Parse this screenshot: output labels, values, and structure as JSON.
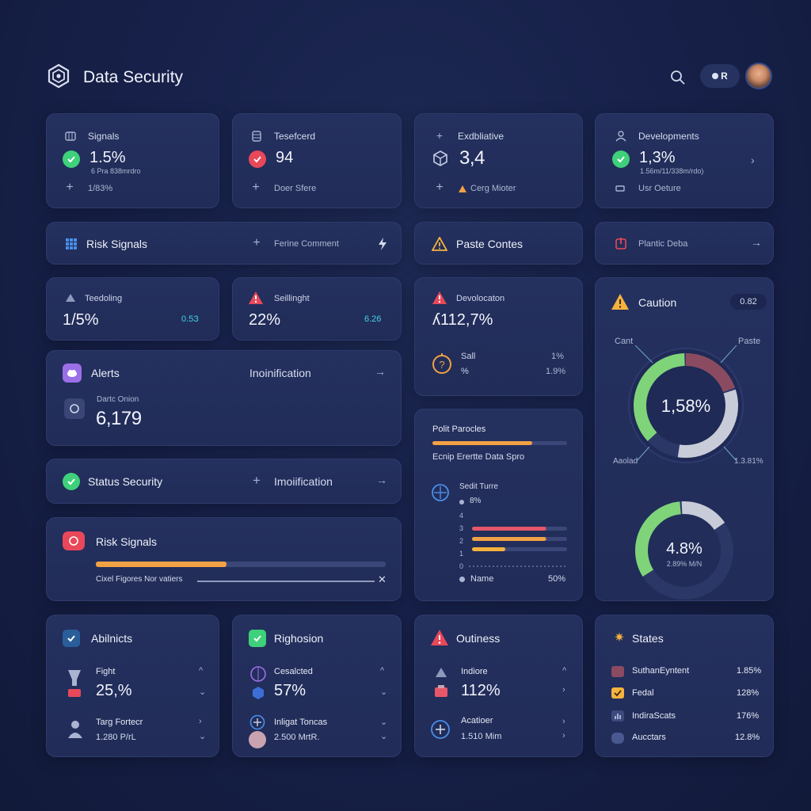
{
  "app": {
    "title": "Data Security"
  },
  "header": {
    "toggle_label": "R"
  },
  "colors": {
    "green": "#3ed07a",
    "red": "#e8485a",
    "orange": "#f2a145",
    "amber": "#f5b23d",
    "blue": "#4a8fe8",
    "purple": "#9b6fe8"
  },
  "top_cards": [
    {
      "title": "Signals",
      "value": "1.5%",
      "sub": "6 Pra 838mrdro",
      "foot": "1/83%"
    },
    {
      "title": "Tesefcerd",
      "value": "94",
      "foot": "Doer Sfere"
    },
    {
      "title": "Exdbliative",
      "value": "3,4",
      "foot": "Cerg Mioter"
    },
    {
      "title": "Developments",
      "value": "1,3%",
      "sub": "1.56m/11/338m/rdo)",
      "foot": "Usr Oeture"
    }
  ],
  "risk_bar": {
    "title": "Risk Signals",
    "action": "Ferine Comment"
  },
  "paste_card": {
    "title": "Paste Contes"
  },
  "plantic_card": {
    "title": "Plantic Deba"
  },
  "metric_cards": [
    {
      "title": "Teedoling",
      "value": "1/5%",
      "delta": "0.5З"
    },
    {
      "title": "Seillinght",
      "value": "22%",
      "delta": "6.26"
    }
  ],
  "devolocation": {
    "title": "Devolocaton",
    "value": "ʎ112,7%",
    "row_label_1": "Sall",
    "row_label_2": "%",
    "row_value_1": "1%",
    "row_value_2": "1.9%"
  },
  "caution": {
    "title": "Caution",
    "badge": "0.82",
    "donut1_label": "1,58%",
    "donut1_tl": "Cant",
    "donut1_tr": "Paste",
    "donut1_bl": "Aaolad",
    "donut1_br": "1.3.81%",
    "donut1_segments": [
      {
        "name": "Cant",
        "value": 0.37,
        "color": "#7fd47a"
      },
      {
        "name": "Paste",
        "value": 0.2,
        "color": "#8a4b61"
      },
      {
        "name": "Aaolad",
        "value": 0.33,
        "color": "#c8ccd8"
      }
    ],
    "donut2_label": "4.8%",
    "donut2_sub": "2.89% M/N",
    "donut2_segments": [
      {
        "value": 0.33,
        "color": "#7fd47a"
      },
      {
        "value": 0.17,
        "color": "#c8ccd8"
      }
    ]
  },
  "alerts": {
    "title": "Alerts",
    "mid": "Inoinification",
    "sub": "Dartc Onion",
    "value": "6,179"
  },
  "status": {
    "title": "Status Security",
    "mid": "Imoiification"
  },
  "risk_signals": {
    "title": "Risk Signals",
    "caption": "Cixel Figores Nor vatiers",
    "progress": 0.45
  },
  "polit": {
    "title": "Polit Parocles",
    "caption": "Ecnip Erertte Data Spro",
    "progress": 0.74,
    "sub_title": "Sedit Turre",
    "sub_value": "8%",
    "y_ticks": [
      "4",
      "3",
      "2",
      "1",
      "0"
    ],
    "bars": [
      {
        "value": 0.78,
        "color": "#e8566a"
      },
      {
        "value": 0.78,
        "color": "#f2a145"
      },
      {
        "value": 0.35,
        "color": "#f5b23d"
      }
    ],
    "legend_label": "Name",
    "legend_value": "50%"
  },
  "bottom": [
    {
      "title": "Abilnicts",
      "r1_label": "Fight",
      "r1_value": "25,%",
      "r2_label": "Targ Fortecr",
      "r2_value": "1.280 P/rL"
    },
    {
      "title": "Righosion",
      "r1_label": "Cesalcted",
      "r1_value": "57%",
      "r2_label": "Inligat Toncas",
      "r2_value": "2.500 MrtR."
    },
    {
      "title": "Outiness",
      "r1_label": "Indiore",
      "r1_value": "112%",
      "r2_label": "Acatioer",
      "r2_value": "1.510 Mim"
    },
    {
      "title": "States",
      "rows": [
        {
          "label": "SuthanEyntent",
          "value": "1.85%"
        },
        {
          "label": "Fedal",
          "value": "128%"
        },
        {
          "label": "IndiraScats",
          "value": "176%"
        },
        {
          "label": "Aucctars",
          "value": "12.8%"
        }
      ]
    }
  ]
}
